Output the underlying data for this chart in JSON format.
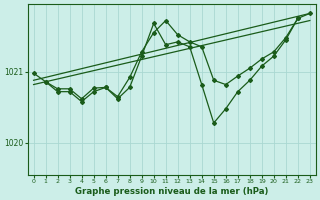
{
  "bg_color": "#cceee8",
  "grid_color": "#aad8d2",
  "line_color": "#1a5c1a",
  "xlabel": "Graphe pression niveau de la mer (hPa)",
  "ylabel_ticks": [
    1020,
    1021
  ],
  "xlim": [
    -0.5,
    23.5
  ],
  "ylim": [
    1019.55,
    1021.95
  ],
  "xticks": [
    0,
    1,
    2,
    3,
    4,
    5,
    6,
    7,
    8,
    9,
    10,
    11,
    12,
    13,
    14,
    15,
    16,
    17,
    18,
    19,
    20,
    21,
    22,
    23
  ],
  "series_smooth1": {
    "x": [
      0,
      23
    ],
    "y": [
      1020.88,
      1021.82
    ]
  },
  "series_smooth2": {
    "x": [
      0,
      23
    ],
    "y": [
      1020.82,
      1021.72
    ]
  },
  "series_zigzag1": {
    "x": [
      0,
      1,
      2,
      3,
      4,
      5,
      6,
      7,
      8,
      9,
      10,
      11,
      12,
      13,
      14,
      15,
      16,
      17,
      18,
      19,
      20,
      21,
      22,
      23
    ],
    "y": [
      1020.98,
      1020.86,
      1020.76,
      1020.76,
      1020.62,
      1020.77,
      1020.78,
      1020.65,
      1020.92,
      1021.28,
      1021.55,
      1021.72,
      1021.52,
      1021.42,
      1021.35,
      1020.88,
      1020.82,
      1020.94,
      1021.05,
      1021.18,
      1021.28,
      1021.48,
      1021.75,
      1021.82
    ]
  },
  "series_zigzag2": {
    "x": [
      1,
      2,
      3,
      4,
      5,
      6,
      7,
      8,
      9,
      10,
      11,
      12,
      13,
      14,
      15,
      16,
      17,
      18,
      19,
      20,
      21,
      22
    ],
    "y": [
      1020.86,
      1020.72,
      1020.72,
      1020.58,
      1020.72,
      1020.78,
      1020.62,
      1020.78,
      1021.22,
      1021.68,
      1021.38,
      1021.42,
      1021.35,
      1020.82,
      1020.28,
      1020.48,
      1020.72,
      1020.88,
      1021.08,
      1021.22,
      1021.45,
      1021.75
    ]
  }
}
